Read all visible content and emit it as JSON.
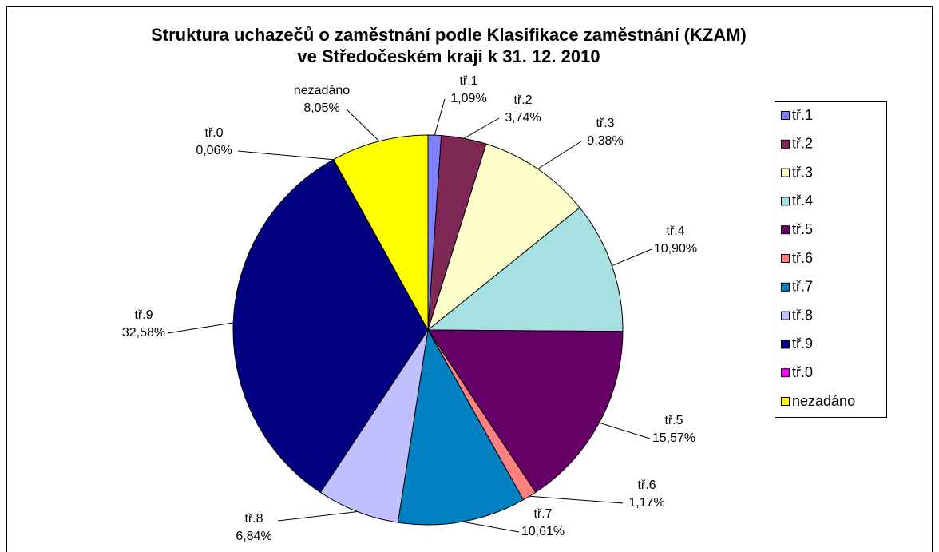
{
  "chart_data": {
    "type": "pie",
    "title": "Struktura uchazečů o zaměstnání podle Klasifikace zaměstnání (KZAM)",
    "subtitle": "ve Středočeském kraji k 31. 12. 2010",
    "categories": [
      "tř.1",
      "tř.2",
      "tř.3",
      "tř.4",
      "tř.5",
      "tř.6",
      "tř.7",
      "tř.8",
      "tř.9",
      "tř.0",
      "nezadáno"
    ],
    "values": [
      1.09,
      3.74,
      9.38,
      10.9,
      15.57,
      1.17,
      10.61,
      6.84,
      32.58,
      0.06,
      8.05
    ],
    "value_labels": [
      "1,09%",
      "3,74%",
      "9,38%",
      "10,90%",
      "15,57%",
      "1,17%",
      "10,61%",
      "6,84%",
      "32,58%",
      "0,06%",
      "8,05%"
    ],
    "colors": [
      "#8080ff",
      "#7f2855",
      "#ffffcc",
      "#a6e0e0",
      "#660066",
      "#ff8080",
      "#0080c0",
      "#c0c0ff",
      "#000080",
      "#ff00ff",
      "#ffff00"
    ],
    "legend": "right"
  }
}
